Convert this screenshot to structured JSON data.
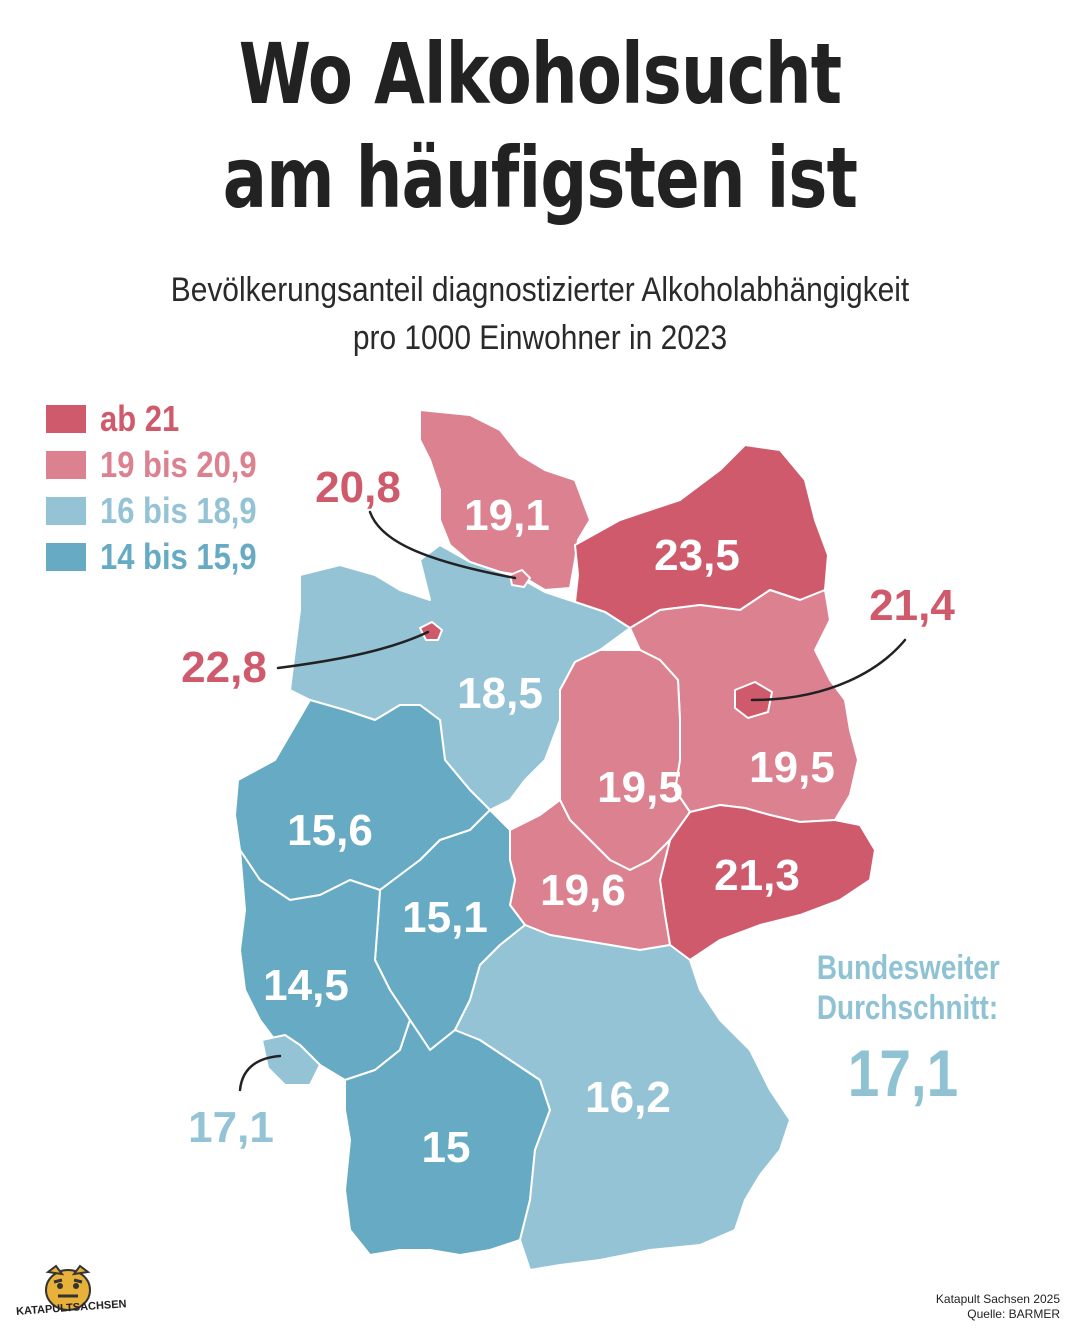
{
  "title_line1": "Wo Alkoholsucht",
  "title_line2": "am häufigsten ist",
  "subtitle_line1": "Bevölkerungsanteil diagnostizierter Alkoholabhängigkeit",
  "subtitle_line2": "pro 1000 Einwohner in 2023",
  "colors": {
    "ab_21": "#cf5a6c",
    "19_bis_20_9": "#dc8190",
    "16_bis_18_9": "#93c3d4",
    "14_bis_15_9": "#66aac3"
  },
  "legend": [
    {
      "label": "ab 21",
      "color": "#cf5a6c"
    },
    {
      "label": "19 bis 20,9",
      "color": "#dc8190"
    },
    {
      "label": "16 bis 18,9",
      "color": "#93c3d4"
    },
    {
      "label": "14 bis 15,9",
      "color": "#66aac3"
    }
  ],
  "states": {
    "schleswig_holstein": "19,1",
    "mecklenburg_vorpommern": "23,5",
    "hamburg": "20,8",
    "bremen": "22,8",
    "berlin": "21,4",
    "niedersachsen": "18,5",
    "sachsen_anhalt": "19,5",
    "brandenburg": "19,5",
    "nordrhein_westfalen": "15,6",
    "sachsen": "21,3",
    "thueringen": "19,6",
    "hessen": "15,1",
    "rheinland_pfalz": "14,5",
    "saarland": "17,1",
    "bayern": "16,2",
    "baden_wuerttemberg": "15"
  },
  "average": {
    "label_line1": "Bundesweiter",
    "label_line2": "Durchschnitt:",
    "value": "17,1"
  },
  "source_line1": "Katapult Sachsen 2025",
  "source_line2": "Quelle: BARMER",
  "logo_text": "KATAPULTSACHSEN"
}
